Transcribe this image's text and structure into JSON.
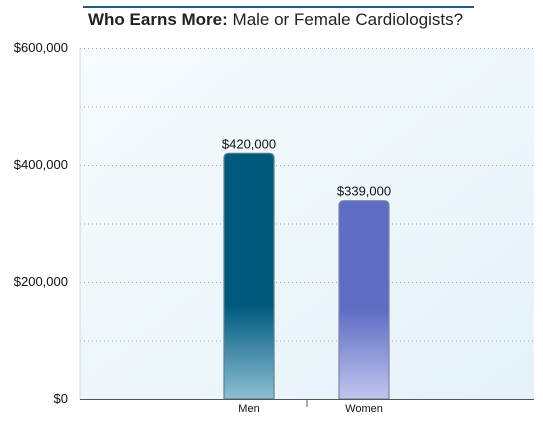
{
  "chart_data": {
    "type": "bar",
    "title_bold": "Who Earns More:",
    "title_rest": "Male or Female Cardiologists?",
    "categories": [
      "Men",
      "Women"
    ],
    "values": [
      420000,
      339000
    ],
    "value_labels": [
      "$420,000",
      "$339,000"
    ],
    "ylim": [
      0,
      600000
    ],
    "yticks": [
      0,
      200000,
      400000,
      600000
    ],
    "ytick_labels": [
      "$0",
      "$200,000",
      "$400,000",
      "$600,000"
    ],
    "grid": true,
    "colors": {
      "men_top": "#005a7e",
      "men_bottom": "#8cbfd4",
      "women_top": "#5f6cc4",
      "women_bottom": "#c0c5ee",
      "plot_bg_light": "#f3fafd",
      "plot_bg": "#e7f3fa",
      "title_rule": "#1f5d82"
    }
  }
}
